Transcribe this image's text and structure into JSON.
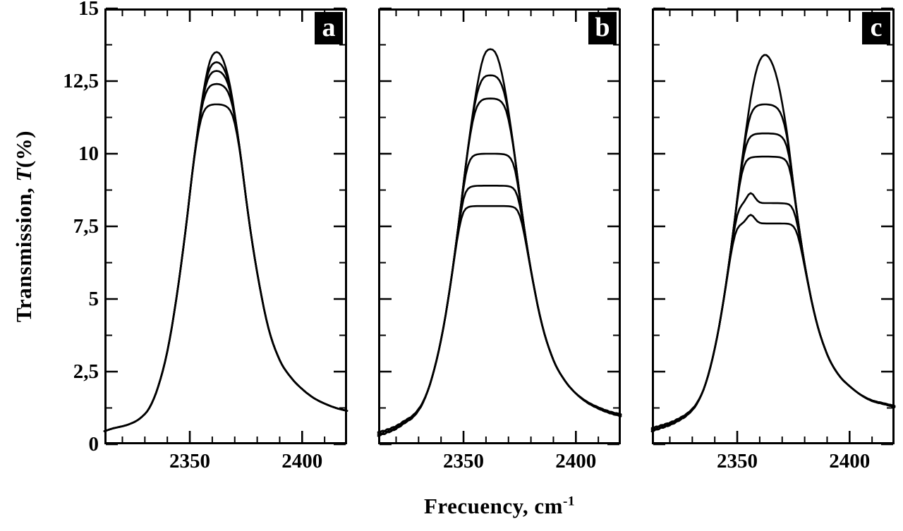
{
  "labels": {
    "y_prefix": "Transmission, ",
    "y_italic": "T",
    "y_suffix": "(%)",
    "x_base": "Frecuency, cm",
    "x_sup": "-1"
  },
  "chart_data": {
    "type": "line",
    "title": "",
    "xlabel": "Frecuency, cm^-1",
    "ylabel": "Transmission, T(%)",
    "xlim": [
      2312,
      2420
    ],
    "ylim": [
      0,
      15
    ],
    "grid": false,
    "legend": "none",
    "line_color": "#000000",
    "background": "#ffffff",
    "x_major_ticks": [
      2350,
      2400
    ],
    "x_minor_tick_step": 10,
    "y_major_tick_step": 2.5,
    "y_minor_tick_step": 1.25,
    "y_tick_labels": [
      "0",
      "2,5",
      "5",
      "7,5",
      "10",
      "12,5",
      "15"
    ],
    "panels": [
      {
        "label": "a",
        "peak_x": 2362,
        "x_profile": [
          2312,
          2316,
          2320,
          2324,
          2328,
          2332,
          2336,
          2340,
          2344,
          2348,
          2352,
          2356,
          2359,
          2362,
          2365,
          2368,
          2372,
          2376,
          2380,
          2385,
          2390,
          2395,
          2400,
          2405,
          2410,
          2415,
          2420
        ],
        "base_curve": [
          0.45,
          0.55,
          0.62,
          0.72,
          0.9,
          1.25,
          2.0,
          3.2,
          5.0,
          7.3,
          9.9,
          12.1,
          13.2,
          13.5,
          13.2,
          12.3,
          10.3,
          7.9,
          5.9,
          4.0,
          2.9,
          2.3,
          1.9,
          1.6,
          1.4,
          1.25,
          1.15
        ],
        "peaks": [
          13.5,
          13.15,
          12.85,
          12.4,
          11.7
        ]
      },
      {
        "label": "b",
        "peak_x": 2361,
        "x_profile": [
          2312,
          2316,
          2320,
          2324,
          2328,
          2332,
          2336,
          2340,
          2344,
          2348,
          2352,
          2356,
          2359,
          2362,
          2365,
          2368,
          2372,
          2376,
          2380,
          2385,
          2390,
          2395,
          2400,
          2405,
          2410,
          2415,
          2420
        ],
        "base_curve": [
          0.35,
          0.45,
          0.58,
          0.78,
          1.0,
          1.45,
          2.3,
          3.6,
          5.4,
          7.7,
          10.2,
          12.3,
          13.35,
          13.6,
          13.35,
          12.4,
          10.4,
          8.0,
          6.0,
          4.1,
          2.9,
          2.2,
          1.75,
          1.45,
          1.25,
          1.1,
          1.0
        ],
        "peaks": [
          13.6,
          12.7,
          11.9,
          10.0,
          8.9,
          8.2
        ]
      },
      {
        "label": "c",
        "peak_x": 2363,
        "x_profile": [
          2312,
          2316,
          2320,
          2324,
          2328,
          2332,
          2336,
          2340,
          2344,
          2348,
          2352,
          2356,
          2359,
          2362,
          2365,
          2368,
          2372,
          2376,
          2380,
          2385,
          2390,
          2395,
          2400,
          2405,
          2410,
          2415,
          2420
        ],
        "base_curve": [
          0.5,
          0.6,
          0.7,
          0.85,
          1.05,
          1.4,
          2.1,
          3.3,
          5.0,
          7.2,
          9.7,
          11.9,
          13.0,
          13.4,
          13.2,
          12.5,
          10.8,
          8.3,
          6.2,
          4.3,
          3.1,
          2.4,
          2.0,
          1.7,
          1.5,
          1.4,
          1.3
        ],
        "peaks": [
          13.4,
          11.7,
          10.7,
          9.9,
          8.3,
          7.6
        ],
        "shoulders": [
          {
            "curve": 4,
            "x": 2356,
            "amp": 0.35,
            "width": 2.5
          },
          {
            "curve": 5,
            "x": 2356,
            "amp": 0.3,
            "width": 2.5
          }
        ]
      }
    ]
  }
}
